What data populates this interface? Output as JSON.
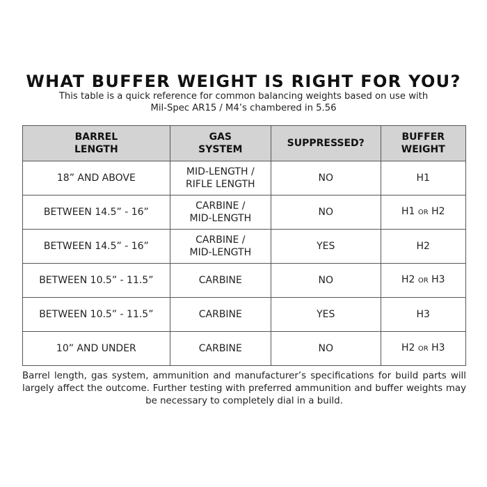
{
  "title": "WHAT BUFFER WEIGHT IS RIGHT FOR YOU?",
  "subtitle_line1": "This table is a quick reference for common balancing weights based on use with",
  "subtitle_line2": "Mil-Spec AR15 / M4’s chambered in 5.56",
  "table": {
    "headers": [
      [
        "BARREL",
        "LENGTH"
      ],
      [
        "GAS",
        "SYSTEM"
      ],
      [
        "SUPPRESSED?"
      ],
      [
        "BUFFER",
        "WEIGHT"
      ]
    ],
    "rows": [
      {
        "barrel": "18” AND ABOVE",
        "gas": [
          "MID-LENGTH /",
          "RIFLE LENGTH"
        ],
        "suppressed": "NO",
        "weight": [
          "H1"
        ]
      },
      {
        "barrel": "BETWEEN 14.5” - 16”",
        "gas": [
          "CARBINE /",
          "MID-LENGTH"
        ],
        "suppressed": "NO",
        "weight": [
          "H1",
          "OR",
          "H2"
        ]
      },
      {
        "barrel": "BETWEEN 14.5” - 16”",
        "gas": [
          "CARBINE /",
          "MID-LENGTH"
        ],
        "suppressed": "YES",
        "weight": [
          "H2"
        ]
      },
      {
        "barrel": "BETWEEN 10.5” - 11.5”",
        "gas": [
          "CARBINE"
        ],
        "suppressed": "NO",
        "weight": [
          "H2",
          "OR",
          "H3"
        ]
      },
      {
        "barrel": "BETWEEN 10.5” - 11.5”",
        "gas": [
          "CARBINE"
        ],
        "suppressed": "YES",
        "weight": [
          "H3"
        ]
      },
      {
        "barrel": "10” AND UNDER",
        "gas": [
          "CARBINE"
        ],
        "suppressed": "NO",
        "weight": [
          "H2",
          "OR",
          "H3"
        ]
      }
    ]
  },
  "footnote": "Barrel length, gas system, ammunition and manufacturer’s specifications for build parts will largely affect the outcome.  Further testing with preferred ammunition and buffer weights may be necessary to completely dial in a build.",
  "colors": {
    "header_bg": "#d3d3d3",
    "border": "#555555"
  }
}
